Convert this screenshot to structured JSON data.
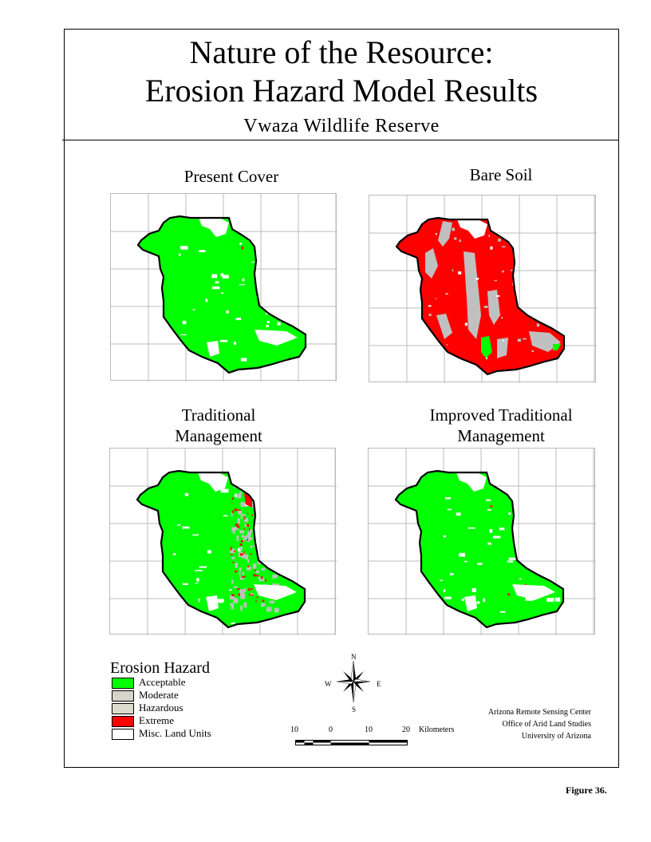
{
  "title_line1": "Nature of the Resource:",
  "title_line2": "Erosion Hazard Model Results",
  "subtitle": "Vwaza Wildlife Reserve",
  "panels": [
    {
      "title": "Present Cover",
      "scenario": "present"
    },
    {
      "title": "Bare Soil",
      "scenario": "bare"
    },
    {
      "title": "Traditional\nManagement",
      "scenario": "traditional"
    },
    {
      "title": "Improved Traditional\nManagement",
      "scenario": "improved"
    }
  ],
  "legend": {
    "title": "Erosion Hazard",
    "items": [
      {
        "label": "Acceptable",
        "color": "#00ff00"
      },
      {
        "label": "Moderate",
        "color": "#d4d4c8"
      },
      {
        "label": "Hazardous",
        "color": "#dcdccc"
      },
      {
        "label": "Extreme",
        "color": "#ff0000"
      },
      {
        "label": "Misc. Land Units",
        "color": "#ffffff"
      }
    ]
  },
  "north_arrow": {
    "n": "N",
    "s": "S",
    "e": "E",
    "w": "W"
  },
  "scale_bar": {
    "ticks": [
      "10",
      "0",
      "10",
      "20"
    ],
    "units": "Kilometers"
  },
  "credits": [
    "Arizona Remote Sensing Center",
    "Office of Arid Land Studies",
    "University of Arizona"
  ],
  "figure_label": "Figure 36."
}
